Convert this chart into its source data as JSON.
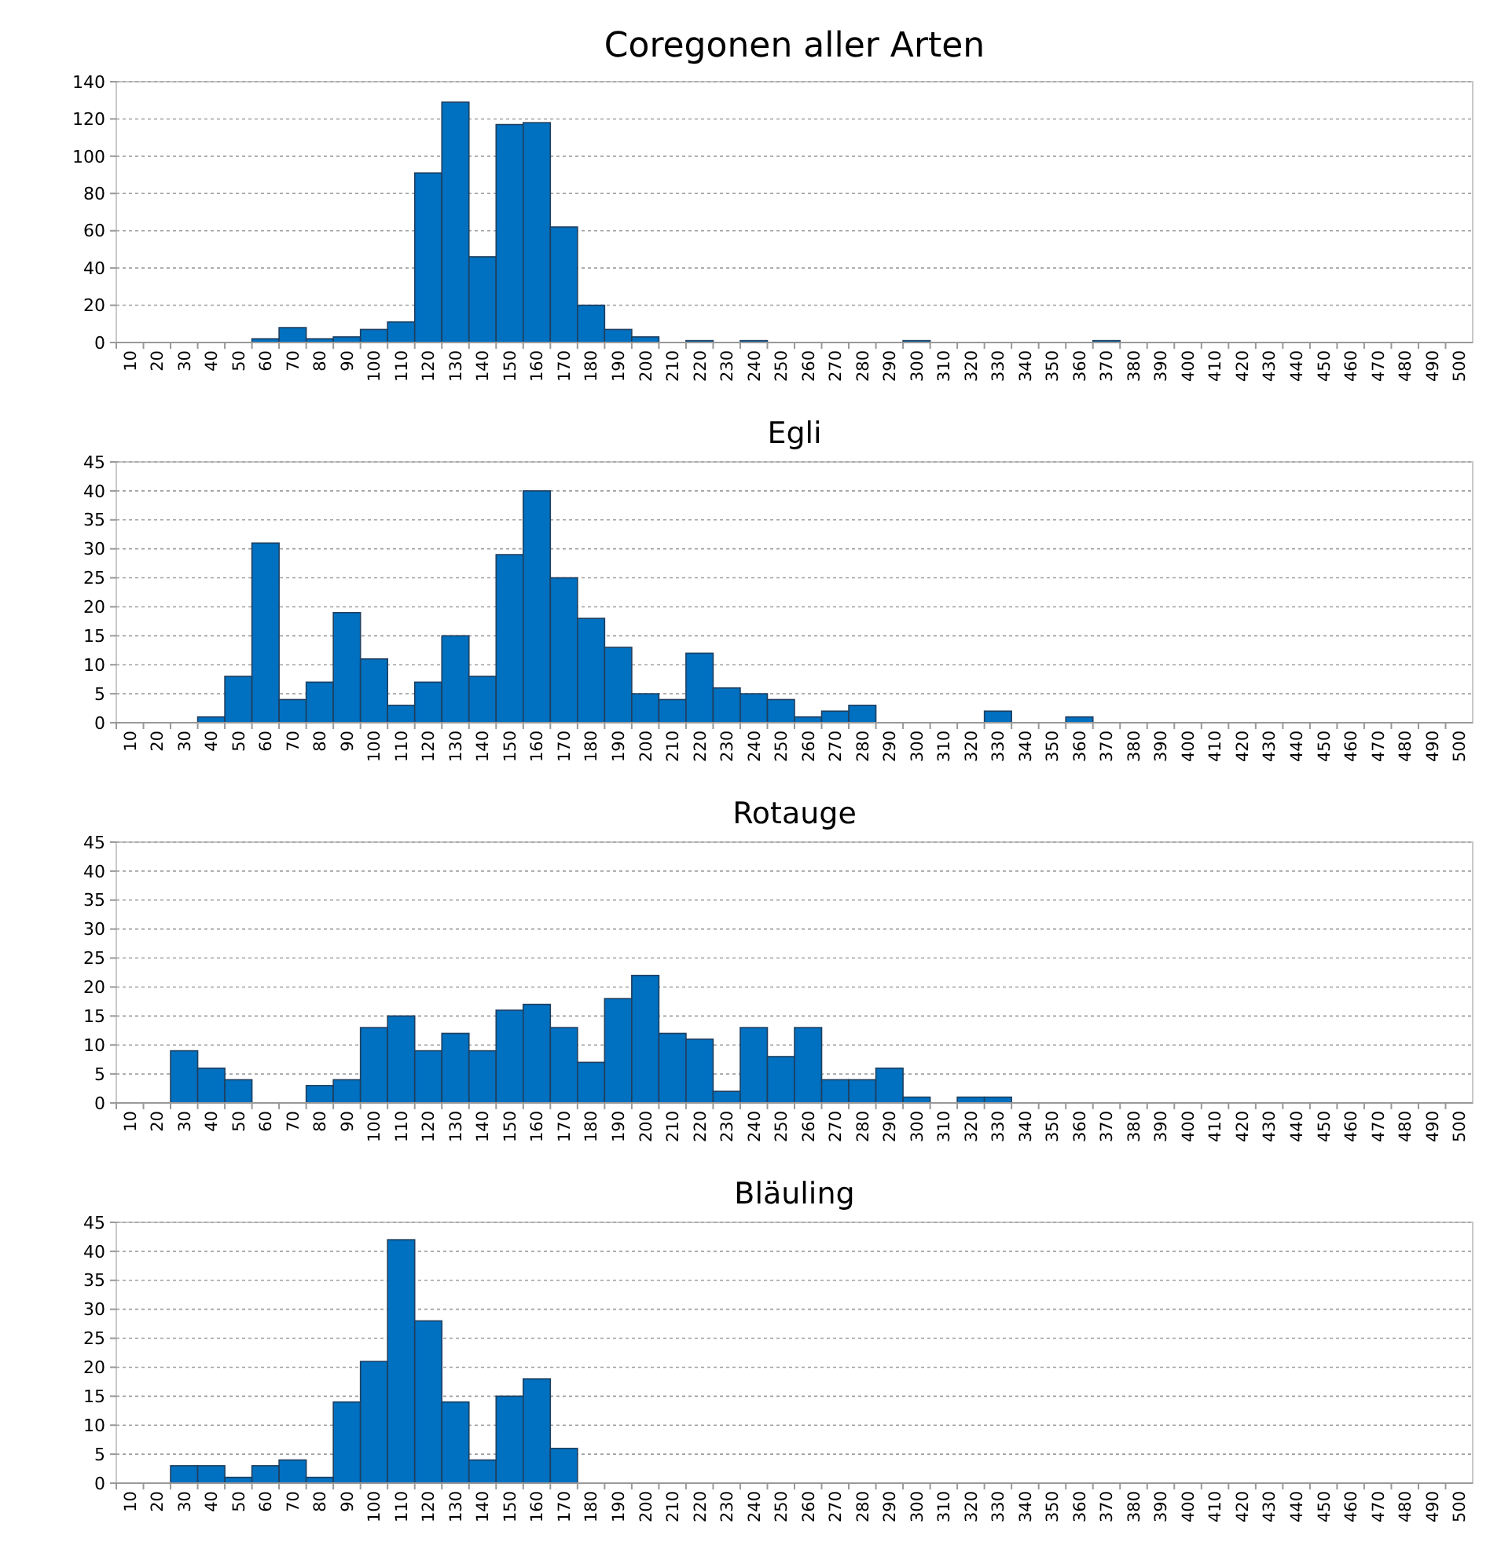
{
  "chart_data": [
    {
      "type": "bar",
      "title": "Coregonen aller Arten",
      "categories": [
        "10",
        "20",
        "30",
        "40",
        "50",
        "60",
        "70",
        "80",
        "90",
        "100",
        "110",
        "120",
        "130",
        "140",
        "150",
        "160",
        "170",
        "180",
        "190",
        "200",
        "210",
        "220",
        "230",
        "240",
        "250",
        "260",
        "270",
        "280",
        "290",
        "300",
        "310",
        "320",
        "330",
        "340",
        "350",
        "360",
        "370",
        "380",
        "390",
        "400",
        "410",
        "420",
        "430",
        "440",
        "450",
        "460",
        "470",
        "480",
        "490",
        "500"
      ],
      "values": [
        0,
        0,
        0,
        0,
        0,
        2,
        8,
        2,
        3,
        7,
        11,
        91,
        129,
        46,
        117,
        118,
        62,
        20,
        7,
        3,
        0,
        1,
        0,
        1,
        0,
        0,
        0,
        0,
        0,
        1,
        0,
        0,
        0,
        0,
        0,
        0,
        1,
        0,
        0,
        0,
        0,
        0,
        0,
        0,
        0,
        0,
        0,
        0,
        0,
        0
      ],
      "color": "#0070c0",
      "ylim": [
        0,
        140
      ],
      "yticks": [
        0,
        20,
        40,
        60,
        80,
        100,
        120,
        140
      ],
      "grid": "y"
    },
    {
      "type": "bar",
      "title": "Egli",
      "categories": [
        "10",
        "20",
        "30",
        "40",
        "50",
        "60",
        "70",
        "80",
        "90",
        "100",
        "110",
        "120",
        "130",
        "140",
        "150",
        "160",
        "170",
        "180",
        "190",
        "200",
        "210",
        "220",
        "230",
        "240",
        "250",
        "260",
        "270",
        "280",
        "290",
        "300",
        "310",
        "320",
        "330",
        "340",
        "350",
        "360",
        "370",
        "380",
        "390",
        "400",
        "410",
        "420",
        "430",
        "440",
        "450",
        "460",
        "470",
        "480",
        "490",
        "500"
      ],
      "values": [
        0,
        0,
        0,
        1,
        8,
        31,
        4,
        7,
        19,
        11,
        3,
        7,
        15,
        8,
        29,
        40,
        25,
        18,
        13,
        5,
        4,
        12,
        6,
        5,
        4,
        1,
        2,
        3,
        0,
        0,
        0,
        0,
        2,
        0,
        0,
        1,
        0,
        0,
        0,
        0,
        0,
        0,
        0,
        0,
        0,
        0,
        0,
        0,
        0,
        0
      ],
      "color": "#0070c0",
      "ylim": [
        0,
        45
      ],
      "yticks": [
        0,
        5,
        10,
        15,
        20,
        25,
        30,
        35,
        40,
        45
      ],
      "grid": "y"
    },
    {
      "type": "bar",
      "title": "Rotauge",
      "categories": [
        "10",
        "20",
        "30",
        "40",
        "50",
        "60",
        "70",
        "80",
        "90",
        "100",
        "110",
        "120",
        "130",
        "140",
        "150",
        "160",
        "170",
        "180",
        "190",
        "200",
        "210",
        "220",
        "230",
        "240",
        "250",
        "260",
        "270",
        "280",
        "290",
        "300",
        "310",
        "320",
        "330",
        "340",
        "350",
        "360",
        "370",
        "380",
        "390",
        "400",
        "410",
        "420",
        "430",
        "440",
        "450",
        "460",
        "470",
        "480",
        "490",
        "500"
      ],
      "values": [
        0,
        0,
        9,
        6,
        4,
        0,
        0,
        3,
        4,
        13,
        15,
        9,
        12,
        9,
        16,
        17,
        13,
        7,
        18,
        22,
        12,
        11,
        2,
        13,
        8,
        13,
        4,
        4,
        6,
        1,
        0,
        1,
        1,
        0,
        0,
        0,
        0,
        0,
        0,
        0,
        0,
        0,
        0,
        0,
        0,
        0,
        0,
        0,
        0,
        0
      ],
      "color": "#0070c0",
      "ylim": [
        0,
        45
      ],
      "yticks": [
        0,
        5,
        10,
        15,
        20,
        25,
        30,
        35,
        40,
        45
      ],
      "grid": "y"
    },
    {
      "type": "bar",
      "title": "Bläuling",
      "categories": [
        "10",
        "20",
        "30",
        "40",
        "50",
        "60",
        "70",
        "80",
        "90",
        "100",
        "110",
        "120",
        "130",
        "140",
        "150",
        "160",
        "170",
        "180",
        "190",
        "200",
        "210",
        "220",
        "230",
        "240",
        "250",
        "260",
        "270",
        "280",
        "290",
        "300",
        "310",
        "320",
        "330",
        "340",
        "350",
        "360",
        "370",
        "380",
        "390",
        "400",
        "410",
        "420",
        "430",
        "440",
        "450",
        "460",
        "470",
        "480",
        "490",
        "500"
      ],
      "values": [
        0,
        0,
        3,
        3,
        1,
        3,
        4,
        1,
        14,
        21,
        42,
        28,
        14,
        4,
        15,
        18,
        6,
        0,
        0,
        0,
        0,
        0,
        0,
        0,
        0,
        0,
        0,
        0,
        0,
        0,
        0,
        0,
        0,
        0,
        0,
        0,
        0,
        0,
        0,
        0,
        0,
        0,
        0,
        0,
        0,
        0,
        0,
        0,
        0,
        0
      ],
      "color": "#0070c0",
      "ylim": [
        0,
        45
      ],
      "yticks": [
        0,
        5,
        10,
        15,
        20,
        25,
        30,
        35,
        40,
        45
      ],
      "grid": "y"
    }
  ]
}
